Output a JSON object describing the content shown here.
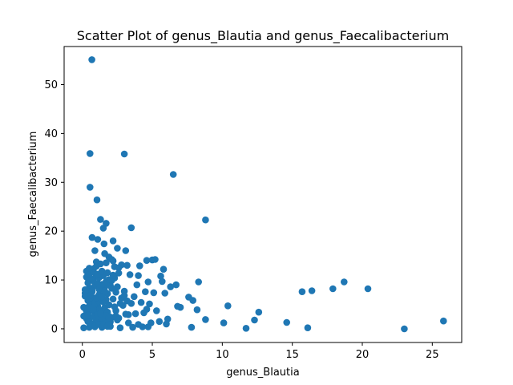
{
  "chart_data": {
    "type": "scatter",
    "title": "Scatter Plot of genus_Blautia and genus_Faecalibacterium",
    "xlabel": "genus_Blautia",
    "ylabel": "genus_Faecalibacterium",
    "xlim": [
      -1.3,
      27.1
    ],
    "ylim": [
      -2.8,
      57.8
    ],
    "xticks": [
      0,
      5,
      10,
      15,
      20,
      25
    ],
    "yticks": [
      0,
      10,
      20,
      30,
      40,
      50
    ],
    "grid": false,
    "marker_color": "#1f77b4",
    "x": [
      0.68,
      0.55,
      3.0,
      6.5,
      0.55,
      1.05,
      8.8,
      1.3,
      1.7,
      1.5,
      3.5,
      0.7,
      1.1,
      1.55,
      2.2,
      0.9,
      1.6,
      2.5,
      3.1,
      1.9,
      2.1,
      0.6,
      0.3,
      4.6,
      5.0,
      5.2,
      2.8,
      3.2,
      4.1,
      5.8,
      1.0,
      1.3,
      2.3,
      2.6,
      3.4,
      0.8,
      4.0,
      5.6,
      6.3,
      6.7,
      8.3,
      4.7,
      5.7,
      3.9,
      0.2,
      0.4,
      0.7,
      1.2,
      1.8,
      2.4,
      3.0,
      4.5,
      5.1,
      5.9,
      7.6,
      7.9,
      6.8,
      7.0,
      8.2,
      10.4,
      12.6,
      15.7,
      16.4,
      17.9,
      18.7,
      20.4,
      0.1,
      0.5,
      0.9,
      1.4,
      2.0,
      2.7,
      3.6,
      4.3,
      4.9,
      5.5,
      6.0,
      7.8,
      8.8,
      10.1,
      12.3,
      14.6,
      11.7,
      16.1,
      23.0,
      25.8,
      0.3,
      0.6,
      1.0,
      1.5,
      2.1,
      2.6,
      3.3,
      3.8,
      4.4,
      0.2,
      0.5,
      0.8,
      1.1,
      1.6,
      1.9,
      2.3,
      2.9,
      3.5,
      4.2,
      4.8,
      0.4,
      0.7,
      1.0,
      1.3,
      1.7,
      2.2,
      2.8,
      0.3,
      0.6,
      0.9,
      1.2,
      1.5,
      1.8,
      2.4,
      3.1,
      0.2,
      0.5,
      0.9,
      1.3,
      1.6,
      2.0,
      2.5,
      0.4,
      0.8,
      1.1,
      1.4,
      1.7,
      2.1,
      0.3,
      0.6,
      1.0,
      1.2,
      1.5,
      1.9,
      2.3,
      0.5,
      0.8,
      1.1,
      1.4,
      1.8,
      2.2,
      2.6,
      3.0,
      3.7,
      0.4,
      0.7,
      1.0,
      1.3,
      1.6,
      2.0,
      0.6,
      0.9,
      1.2,
      1.5,
      1.8,
      0.1,
      0.4,
      0.8,
      1.1,
      1.4,
      1.7,
      2.0,
      2.4,
      0.6,
      0.9,
      1.2,
      1.5,
      2.7,
      3.2,
      4.6,
      5.3,
      6.1,
      0.5,
      1.0,
      1.7,
      2.2,
      0.3,
      0.7,
      1.2,
      1.6,
      2.1,
      0.2,
      0.6,
      1.0,
      1.4,
      0.1,
      0.4,
      0.8,
      1.3,
      1.9,
      2.5,
      3.3,
      4.0,
      4.7
    ],
    "y": [
      55.1,
      35.9,
      35.8,
      31.6,
      29.0,
      26.4,
      22.3,
      22.4,
      21.6,
      20.6,
      20.7,
      18.7,
      18.3,
      17.4,
      18.0,
      16.0,
      15.4,
      16.5,
      16.0,
      14.7,
      14.2,
      12.0,
      11.8,
      14.0,
      14.1,
      14.2,
      13.1,
      13.0,
      12.9,
      12.2,
      13.7,
      13.3,
      12.7,
      12.5,
      11.1,
      12.3,
      10.9,
      10.8,
      8.6,
      9.0,
      9.6,
      9.6,
      9.7,
      9.0,
      7.3,
      7.4,
      7.6,
      7.0,
      7.2,
      7.5,
      7.7,
      7.6,
      7.4,
      7.3,
      6.5,
      5.8,
      4.6,
      4.4,
      3.9,
      4.7,
      3.4,
      7.6,
      7.8,
      8.2,
      9.6,
      8.2,
      0.2,
      0.3,
      0.4,
      0.3,
      0.5,
      0.2,
      0.3,
      0.4,
      1.2,
      1.5,
      1.0,
      0.3,
      1.9,
      1.2,
      1.8,
      1.3,
      0.1,
      0.2,
      0.0,
      1.6,
      2.1,
      2.4,
      1.9,
      2.7,
      2.3,
      2.2,
      2.9,
      3.1,
      3.3,
      4.2,
      4.7,
      4.1,
      4.6,
      4.3,
      4.9,
      4.5,
      4.8,
      5.2,
      5.4,
      5.1,
      5.8,
      6.2,
      5.9,
      6.4,
      6.0,
      6.1,
      6.3,
      3.6,
      3.8,
      3.5,
      3.9,
      3.2,
      3.4,
      3.7,
      3.0,
      8.0,
      8.4,
      8.8,
      8.2,
      8.5,
      8.9,
      8.6,
      9.4,
      9.8,
      9.3,
      9.1,
      9.7,
      9.9,
      10.6,
      10.3,
      10.8,
      10.5,
      10.9,
      10.1,
      10.4,
      11.3,
      11.6,
      11.2,
      11.8,
      11.5,
      11.0,
      11.4,
      6.8,
      6.6,
      1.5,
      1.1,
      1.7,
      1.3,
      1.6,
      1.4,
      0.8,
      0.6,
      0.9,
      0.7,
      0.5,
      2.6,
      2.8,
      2.5,
      2.9,
      2.2,
      2.7,
      2.4,
      2.6,
      5.0,
      5.3,
      5.6,
      5.5,
      5.2,
      5.7,
      4.0,
      3.7,
      2.0,
      12.4,
      12.8,
      13.5,
      13.9,
      7.9,
      7.8,
      8.1,
      7.7,
      8.3,
      6.7,
      6.9,
      6.4,
      6.6,
      4.4,
      4.2,
      4.0,
      3.1,
      2.3,
      1.8,
      1.2,
      0.9,
      0.4
    ]
  }
}
